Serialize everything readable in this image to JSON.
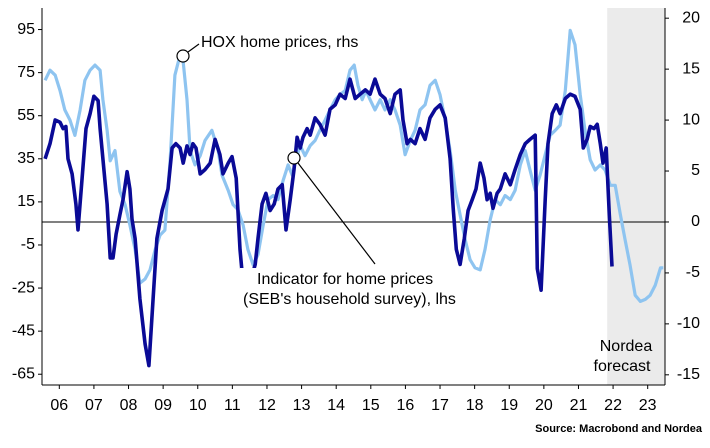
{
  "chart_data": {
    "type": "line",
    "xlim": [
      2006,
      2024
    ],
    "xticks": [
      {
        "value": 2006.5,
        "label": "06"
      },
      {
        "value": 2007.5,
        "label": "07"
      },
      {
        "value": 2008.5,
        "label": "08"
      },
      {
        "value": 2009.5,
        "label": "09"
      },
      {
        "value": 2010.5,
        "label": "10"
      },
      {
        "value": 2011.5,
        "label": "11"
      },
      {
        "value": 2012.5,
        "label": "12"
      },
      {
        "value": 2013.5,
        "label": "13"
      },
      {
        "value": 2014.5,
        "label": "14"
      },
      {
        "value": 2015.5,
        "label": "15"
      },
      {
        "value": 2016.5,
        "label": "16"
      },
      {
        "value": 2017.5,
        "label": "17"
      },
      {
        "value": 2018.5,
        "label": "18"
      },
      {
        "value": 2019.5,
        "label": "19"
      },
      {
        "value": 2020.5,
        "label": "20"
      },
      {
        "value": 2021.5,
        "label": "21"
      },
      {
        "value": 2022.5,
        "label": "22"
      },
      {
        "value": 2023.5,
        "label": "23"
      }
    ],
    "ylim": [
      -70,
      105
    ],
    "yticks": [
      95,
      75,
      55,
      35,
      15,
      -5,
      -25,
      -45,
      -65
    ],
    "y2lim": [
      -16,
      21
    ],
    "y2ticks": [
      20,
      15,
      10,
      5,
      0,
      -5,
      -10,
      -15
    ],
    "hline_y2": 0,
    "forecast_region": [
      2022.33,
      2024
    ],
    "forecast_color": "#ebebeb",
    "forecast_label": [
      "Nordea",
      "forecast"
    ],
    "source": "Source: Macrobond and Nordea",
    "series": [
      {
        "name": "HOX home prices, rhs",
        "axis": "y2",
        "color": "#8ec4f0",
        "x": [
          2006.09,
          2006.23,
          2006.38,
          2006.52,
          2006.66,
          2006.81,
          2006.95,
          2007.1,
          2007.24,
          2007.39,
          2007.53,
          2007.68,
          2007.76,
          2007.88,
          2007.97,
          2008.11,
          2008.25,
          2008.4,
          2008.54,
          2008.69,
          2008.83,
          2008.98,
          2009.12,
          2009.27,
          2009.41,
          2009.55,
          2009.7,
          2009.84,
          2009.99,
          2010.08,
          2010.19,
          2010.28,
          2010.42,
          2010.57,
          2010.71,
          2010.91,
          2011.09,
          2011.2,
          2011.38,
          2011.52,
          2011.66,
          2011.81,
          2011.95,
          2012.1,
          2012.24,
          2012.39,
          2012.53,
          2012.68,
          2012.82,
          2012.97,
          2013.11,
          2013.23,
          2013.34,
          2013.46,
          2013.6,
          2013.75,
          2013.89,
          2014.03,
          2014.18,
          2014.32,
          2014.47,
          2014.61,
          2014.76,
          2014.9,
          2015.02,
          2015.13,
          2015.25,
          2015.36,
          2015.48,
          2015.62,
          2015.77,
          2015.91,
          2016.06,
          2016.2,
          2016.35,
          2016.49,
          2016.64,
          2016.78,
          2016.92,
          2017.07,
          2017.21,
          2017.36,
          2017.5,
          2017.65,
          2017.79,
          2017.94,
          2018.08,
          2018.23,
          2018.37,
          2018.51,
          2018.66,
          2018.8,
          2018.95,
          2019.09,
          2019.24,
          2019.38,
          2019.53,
          2019.67,
          2019.82,
          2019.96,
          2020.1,
          2020.25,
          2020.39,
          2020.54,
          2020.68,
          2020.83,
          2020.97,
          2021.12,
          2021.26,
          2021.4,
          2021.55,
          2021.69,
          2021.84,
          2021.98,
          2022.13,
          2022.27,
          2022.42,
          2022.56,
          2022.71,
          2022.85,
          2022.99,
          2023.14,
          2023.29,
          2023.43,
          2023.57,
          2023.72,
          2023.87,
          2023.95
        ],
        "values": [
          13.9,
          14.9,
          14.4,
          12.9,
          11,
          10,
          8.5,
          11,
          13.9,
          14.9,
          15.4,
          14.9,
          12,
          9,
          6,
          7,
          3,
          1.7,
          -0.3,
          -2.7,
          -6,
          -5.6,
          -4.7,
          -2.7,
          -1.3,
          -0.8,
          6,
          14.4,
          16.4,
          15.7,
          12,
          7,
          5.6,
          6.5,
          8,
          9,
          7,
          4.6,
          3.1,
          1.7,
          1.2,
          -0.3,
          -2.7,
          -4.2,
          -3.2,
          -0.3,
          2.2,
          2.6,
          2.2,
          4.1,
          5.6,
          4.6,
          6.1,
          7.5,
          6.5,
          7.5,
          8,
          9,
          10,
          11,
          12,
          12.5,
          12.9,
          14.9,
          15.4,
          13.4,
          12,
          12.9,
          12,
          11,
          12,
          11,
          12,
          11,
          9.5,
          6.6,
          8,
          9,
          11,
          11.5,
          13.4,
          13.9,
          12.5,
          10,
          7,
          3.1,
          0.7,
          -1.8,
          -3.7,
          -4.5,
          -4.7,
          -2.7,
          0.2,
          2.2,
          1.7,
          2.6,
          2.2,
          3.1,
          5.6,
          7,
          5.1,
          3.1,
          4.6,
          6.6,
          8.5,
          9,
          9.5,
          12.9,
          18.8,
          17.4,
          12.5,
          9,
          6.1,
          5.1,
          5.6,
          5.1,
          3.6,
          3.6,
          0.7,
          -1.8,
          -4.2,
          -7.2,
          -7.8,
          -7.6,
          -7.2,
          -6.2,
          -4.5,
          -4.5
        ]
      },
      {
        "name": [
          "Indicator for home prices",
          "(SEB's household survey), lhs"
        ],
        "axis": "y",
        "color": "#0a0a96",
        "x": [
          2006.09,
          2006.23,
          2006.38,
          2006.52,
          2006.61,
          2006.69,
          2006.75,
          2006.87,
          2006.98,
          2007.04,
          2007.16,
          2007.27,
          2007.39,
          2007.5,
          2007.62,
          2007.68,
          2007.76,
          2007.88,
          2007.97,
          2008.05,
          2008.14,
          2008.25,
          2008.34,
          2008.46,
          2008.54,
          2008.6,
          2008.69,
          2008.83,
          2008.98,
          2009.09,
          2009.21,
          2009.32,
          2009.47,
          2009.64,
          2009.76,
          2009.87,
          2009.99,
          2010.08,
          2010.19,
          2010.28,
          2010.36,
          2010.45,
          2010.57,
          2010.71,
          2010.86,
          2011.0,
          2011.14,
          2011.23,
          2011.38,
          2011.49,
          2011.61,
          2011.72,
          2011.81,
          2011.92,
          2012.04,
          2012.16,
          2012.24,
          2012.36,
          2012.47,
          2012.59,
          2012.71,
          2012.82,
          2012.94,
          2013.05,
          2013.17,
          2013.28,
          2013.37,
          2013.46,
          2013.54,
          2013.66,
          2013.75,
          2013.89,
          2014.03,
          2014.18,
          2014.32,
          2014.47,
          2014.61,
          2014.76,
          2014.9,
          2015.05,
          2015.19,
          2015.34,
          2015.48,
          2015.62,
          2015.77,
          2015.91,
          2016.06,
          2016.2,
          2016.35,
          2016.43,
          2016.55,
          2016.64,
          2016.78,
          2016.92,
          2017.07,
          2017.21,
          2017.36,
          2017.5,
          2017.65,
          2017.79,
          2017.88,
          2017.97,
          2018.08,
          2018.2,
          2018.31,
          2018.43,
          2018.54,
          2018.66,
          2018.77,
          2018.86,
          2018.95,
          2019.03,
          2019.15,
          2019.24,
          2019.38,
          2019.53,
          2019.67,
          2019.82,
          2019.96,
          2020.1,
          2020.25,
          2020.31,
          2020.42,
          2020.54,
          2020.62,
          2020.74,
          2020.86,
          2020.97,
          2021.12,
          2021.26,
          2021.4,
          2021.55,
          2021.64,
          2021.75,
          2021.84,
          2021.95,
          2022.04,
          2022.13,
          2022.21,
          2022.3,
          2022.39,
          2022.47
        ],
        "values": [
          35,
          42,
          53,
          52,
          49,
          50,
          35,
          28,
          14,
          2,
          26,
          49,
          56,
          64,
          62,
          49,
          35,
          14,
          -11,
          -11,
          0,
          9,
          16,
          29,
          21,
          7,
          -2,
          -30,
          -51,
          -61,
          -30,
          -2,
          11,
          21,
          40,
          42,
          40,
          33,
          41,
          37,
          42,
          40,
          28,
          30,
          33,
          44,
          37,
          28,
          33,
          36,
          26,
          -7,
          -23,
          -19,
          -21,
          -14,
          -2,
          14,
          19,
          11,
          14,
          21,
          23,
          2,
          16,
          30,
          45,
          40,
          45,
          49,
          46,
          54,
          51,
          46,
          58,
          60,
          65,
          63,
          72,
          63,
          65,
          67,
          65,
          72,
          65,
          63,
          56,
          65,
          67,
          53,
          42,
          44,
          42,
          49,
          44,
          54,
          58,
          60,
          54,
          35,
          12,
          -7,
          -14,
          -2,
          11,
          16,
          21,
          33,
          26,
          16,
          19,
          12,
          19,
          21,
          28,
          23,
          30,
          37,
          42,
          44,
          46,
          -16,
          -26,
          16,
          42,
          56,
          60,
          56,
          63,
          65,
          64,
          58,
          40,
          44,
          50,
          49,
          51,
          42,
          33,
          40,
          9,
          -15
        ]
      }
    ]
  }
}
